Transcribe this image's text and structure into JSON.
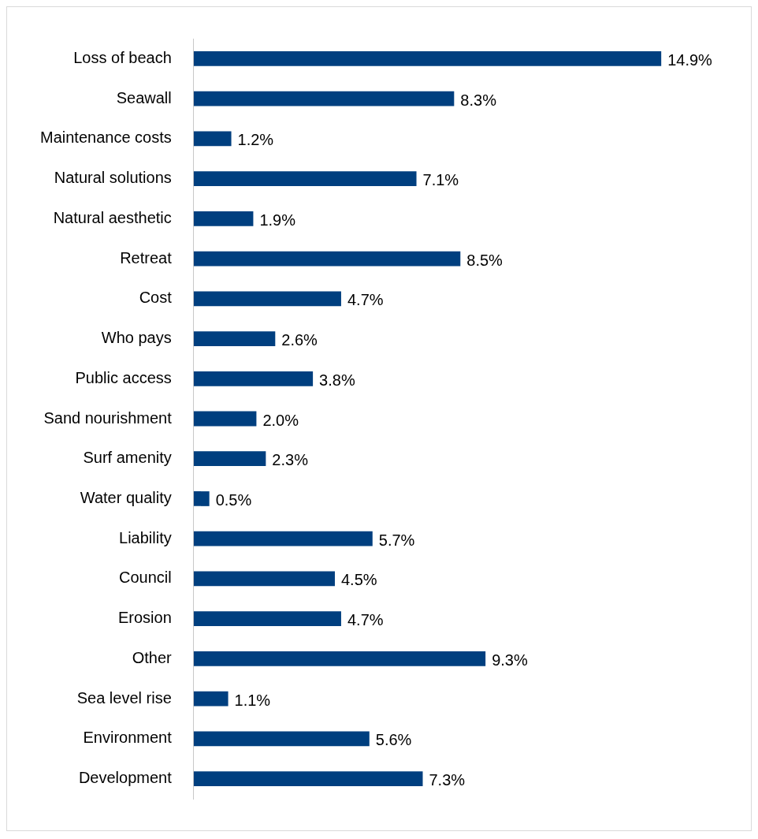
{
  "chart_data": {
    "type": "bar",
    "orientation": "horizontal",
    "categories": [
      "Loss of beach",
      "Seawall",
      "Maintenance costs",
      "Natural solutions",
      "Natural aesthetic",
      "Retreat",
      "Cost",
      "Who pays",
      "Public access",
      "Sand nourishment",
      "Surf amenity",
      "Water quality",
      "Liability",
      "Council",
      "Erosion",
      "Other",
      "Sea level rise",
      "Environment",
      "Development"
    ],
    "values": [
      14.9,
      8.3,
      1.2,
      7.1,
      1.9,
      8.5,
      4.7,
      2.6,
      3.8,
      2.0,
      2.3,
      0.5,
      5.7,
      4.5,
      4.7,
      9.3,
      1.1,
      5.6,
      7.3
    ],
    "value_labels": [
      "14.9%",
      "8.3%",
      "1.2%",
      "7.1%",
      "1.9%",
      "8.5%",
      "4.7%",
      "2.6%",
      "3.8%",
      "2.0%",
      "2.3%",
      "0.5%",
      "5.7%",
      "4.5%",
      "4.7%",
      "9.3%",
      "1.1%",
      "5.6%",
      "7.3%"
    ],
    "color": "#003f7f",
    "grid": false,
    "legend": false,
    "tick_labels": "y"
  }
}
